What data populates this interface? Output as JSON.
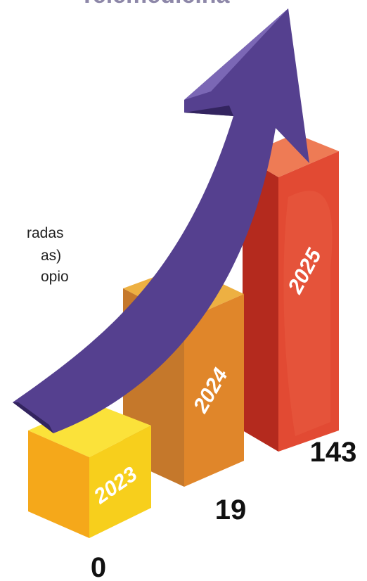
{
  "title": "Telemedicina",
  "text_lines": [
    "radas",
    "as)",
    "opio"
  ],
  "bars": [
    {
      "year": "2023",
      "value": 0
    },
    {
      "year": "2024",
      "value": 19
    },
    {
      "year": "2025",
      "value": 143
    }
  ]
}
